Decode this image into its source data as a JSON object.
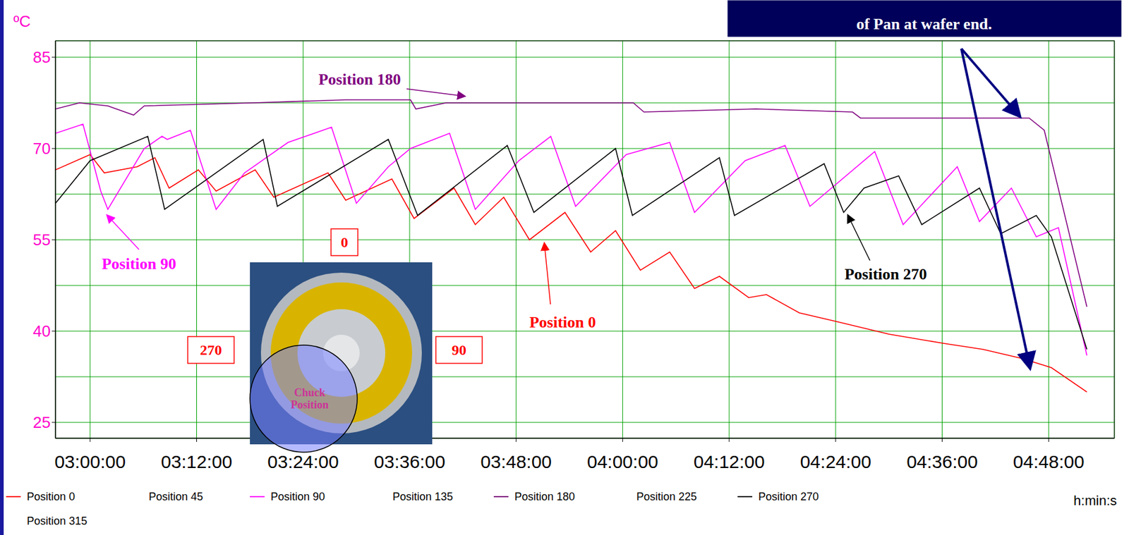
{
  "chart_data": {
    "type": "line",
    "x_label": "h:min:s",
    "y_label": "ºC",
    "xlim": [
      "02:56:06",
      "04:55:24"
    ],
    "xticks": [
      "03:00:00",
      "03:12:00",
      "03:24:00",
      "03:36:00",
      "03:48:00",
      "04:00:00",
      "04:12:00",
      "04:24:00",
      "04:36:00",
      "04:48:00"
    ],
    "ylim": [
      22.4,
      87.7
    ],
    "yticks": [
      25,
      40,
      55,
      70,
      85
    ],
    "grid": true,
    "legend": "bottom",
    "series": [
      {
        "name": "Position 0",
        "color": "#ff0000",
        "x": [
          "02:56:06",
          "03:00:00",
          "03:01:36",
          "03:05:18",
          "03:07:18",
          "03:08:54",
          "03:12:12",
          "03:14:12",
          "03:18:36",
          "03:20:42",
          "03:26:48",
          "03:28:48",
          "03:34:00",
          "03:36:30",
          "03:41:00",
          "03:43:24",
          "03:46:36",
          "03:49:30",
          "03:53:30",
          "03:56:24",
          "03:59:12",
          "04:02:00",
          "04:05:18",
          "04:08:06",
          "04:10:54",
          "04:14:12",
          "04:16:12",
          "04:19:54",
          "04:24:18",
          "04:30:00",
          "04:36:06",
          "04:40:36",
          "04:45:00",
          "04:48:18",
          "04:52:18"
        ],
        "values": [
          66.5,
          69,
          66,
          67,
          68.5,
          63.5,
          66.5,
          63,
          66.5,
          62,
          66,
          61.5,
          65,
          58.5,
          63.5,
          57.5,
          62,
          55,
          59.5,
          53,
          56.5,
          50,
          53,
          47,
          49,
          45.5,
          46,
          43,
          41.5,
          39.5,
          38,
          37,
          35.5,
          34,
          30
        ]
      },
      {
        "name": "Position 45",
        "x": [],
        "values": []
      },
      {
        "name": "Position 90",
        "color": "#ff00ff",
        "x": [
          "02:56:06",
          "02:59:12",
          "03:01:12",
          "03:02:00",
          "03:06:06",
          "03:08:06",
          "03:08:42",
          "03:11:18",
          "03:14:12",
          "03:17:24",
          "03:22:18",
          "03:27:12",
          "03:30:00",
          "03:33:36",
          "03:36:06",
          "03:40:30",
          "03:43:24",
          "03:48:18",
          "03:51:54",
          "03:54:42",
          "04:00:24",
          "04:05:18",
          "04:08:06",
          "04:13:48",
          "04:18:18",
          "04:21:06",
          "04:28:24",
          "04:31:36",
          "04:37:42",
          "04:40:12",
          "04:43:48",
          "04:46:36",
          "04:49:06",
          "04:52:18"
        ],
        "values": [
          72.5,
          74,
          63,
          60,
          70,
          72,
          71.5,
          73,
          60,
          66,
          71,
          73.5,
          61,
          67,
          70,
          72.5,
          60,
          68,
          72,
          60.5,
          69,
          71,
          59.5,
          68,
          70.5,
          60.5,
          69.5,
          57.5,
          67,
          58,
          63.5,
          55.5,
          57,
          36
        ]
      },
      {
        "name": "Position 135",
        "x": [],
        "values": []
      },
      {
        "name": "Position 180",
        "color": "#800080",
        "x": [
          "02:56:06",
          "02:58:48",
          "03:02:00",
          "03:04:54",
          "03:06:06",
          "03:18:18",
          "03:28:48",
          "03:36:06",
          "03:36:42",
          "03:40:06",
          "04:01:12",
          "04:02:24",
          "04:15:00",
          "04:25:54",
          "04:26:48",
          "04:45:48",
          "04:47:30",
          "04:52:18"
        ],
        "values": [
          76.5,
          77.5,
          77,
          75.5,
          77,
          77.5,
          78,
          78,
          76.5,
          77.5,
          77.5,
          76,
          76.5,
          76,
          75,
          75,
          73,
          44
        ]
      },
      {
        "name": "Position 225",
        "x": [],
        "values": []
      },
      {
        "name": "Position 270",
        "color": "#000000",
        "x": [
          "02:56:06",
          "03:00:00",
          "03:06:30",
          "03:08:24",
          "03:19:30",
          "03:21:06",
          "03:33:36",
          "03:36:54",
          "03:47:00",
          "03:50:00",
          "03:59:12",
          "04:01:06",
          "04:10:54",
          "04:12:36",
          "04:22:42",
          "04:24:54",
          "04:27:12",
          "04:31:06",
          "04:33:42",
          "04:40:12",
          "04:42:36",
          "04:46:36",
          "04:48:18",
          "04:52:18"
        ],
        "values": [
          61,
          68,
          72,
          60,
          71.5,
          60.5,
          71.5,
          59,
          70.5,
          59.5,
          70,
          59,
          68.5,
          59,
          67.5,
          59.5,
          63.5,
          65.5,
          57.5,
          63.5,
          56,
          59,
          55.5,
          37
        ]
      },
      {
        "name": "Position 315",
        "x": [],
        "values": []
      }
    ],
    "annotations": [
      "Position 180",
      "Position 90",
      "Position 0",
      "Position 270"
    ],
    "note_box": "of Pan at wafer end.",
    "inset": {
      "labels": [
        "0",
        "270",
        "90"
      ],
      "chuck_label": "Chuck Position"
    }
  }
}
